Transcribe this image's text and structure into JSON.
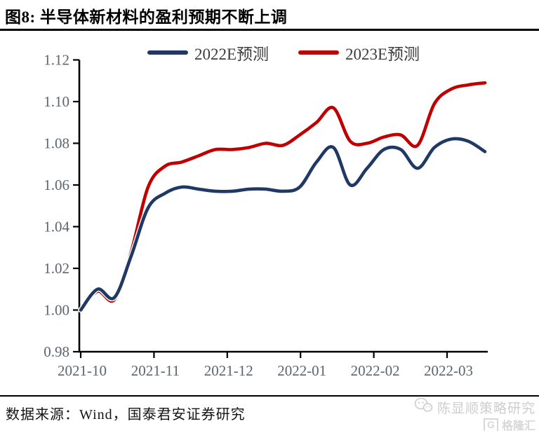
{
  "title": "图8: 半导体新材料的盈利预期不断上调",
  "source_note": "数据来源：Wind，国泰君安证券研究",
  "watermark": {
    "account": "陈显顺策略研究",
    "logo_letter": "G",
    "logo_text": "格隆汇"
  },
  "colors": {
    "line_2022e": "#1f3864",
    "line_2023e": "#c00000",
    "axis": "#000000",
    "tick_label": "#5a6472",
    "legend_text": "#3d3d3d",
    "watermark": "#cdcdcd"
  },
  "chart_data": {
    "type": "line",
    "title": "半导体新材料的盈利预期不断上调",
    "x": [
      "2021-10-01",
      "2021-10-08",
      "2021-10-15",
      "2021-10-22",
      "2021-10-29",
      "2021-11-05",
      "2021-11-12",
      "2021-11-19",
      "2021-11-26",
      "2021-12-03",
      "2021-12-10",
      "2021-12-17",
      "2021-12-24",
      "2021-12-31",
      "2022-01-07",
      "2022-01-14",
      "2022-01-21",
      "2022-01-28",
      "2022-02-04",
      "2022-02-11",
      "2022-02-18",
      "2022-02-25",
      "2022-03-04",
      "2022-03-11",
      "2022-03-18"
    ],
    "series": [
      {
        "name": "2022E预测",
        "color": "#1f3864",
        "values": [
          1.0,
          1.01,
          1.006,
          1.026,
          1.049,
          1.056,
          1.059,
          1.058,
          1.057,
          1.057,
          1.058,
          1.058,
          1.057,
          1.059,
          1.071,
          1.078,
          1.06,
          1.068,
          1.077,
          1.077,
          1.068,
          1.078,
          1.082,
          1.081,
          1.076
        ]
      },
      {
        "name": "2023E预测",
        "color": "#c00000",
        "values": [
          1.0,
          1.009,
          1.005,
          1.028,
          1.059,
          1.069,
          1.071,
          1.074,
          1.077,
          1.077,
          1.078,
          1.08,
          1.079,
          1.084,
          1.09,
          1.097,
          1.081,
          1.08,
          1.083,
          1.084,
          1.079,
          1.099,
          1.106,
          1.108,
          1.109
        ]
      }
    ],
    "ylim": [
      0.98,
      1.12
    ],
    "yticks": [
      "1.12",
      "1.10",
      "1.08",
      "1.06",
      "1.04",
      "1.02",
      "1.00",
      "0.98"
    ],
    "xticks": [
      "2021-10",
      "2021-11",
      "2021-12",
      "2022-01",
      "2022-02",
      "2022-03"
    ],
    "grid": false,
    "legend_position": "top",
    "line_smoothing": true
  }
}
